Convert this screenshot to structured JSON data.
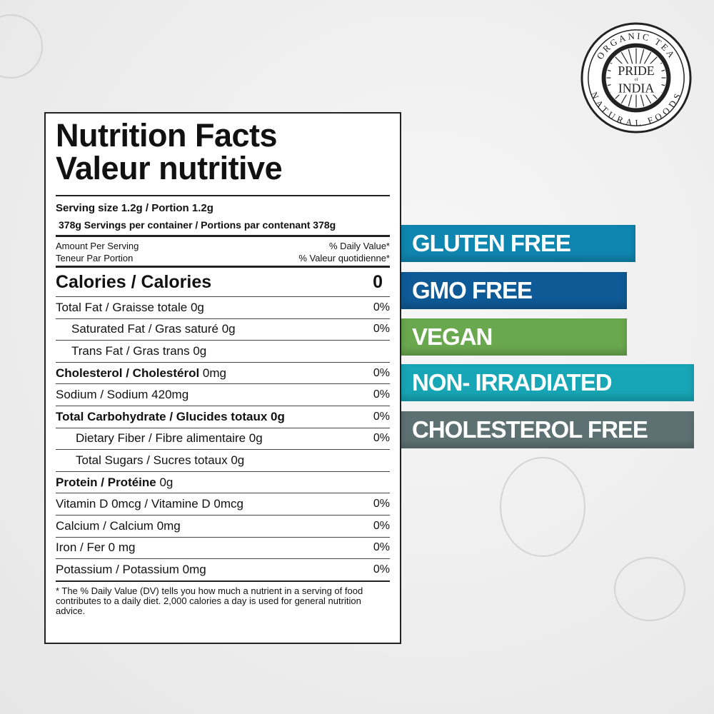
{
  "label": {
    "title_en": "Nutrition Facts",
    "title_fr": "Valeur nutritive",
    "serving_size": "Serving size 1.2g / Portion 1.2g",
    "servings_per": "378g Servings per container / Portions par contenant 378g",
    "amount_en": "Amount Per Serving",
    "amount_fr": "Teneur Par Portion",
    "dv_en": "% Daily Value*",
    "dv_fr": "% Valeur quotidienne*",
    "calories_label": "Calories / Calories",
    "calories_value": "0",
    "rows": [
      {
        "bold": "",
        "text": "Total Fat / Graisse totale 0g",
        "dv": "0%"
      },
      {
        "bold": "",
        "text": "Saturated Fat / Gras saturé 0g",
        "dv": "0%"
      },
      {
        "bold": "",
        "text": "Trans Fat / Gras trans 0g",
        "dv": ""
      },
      {
        "bold": "Cholesterol / Cholestérol",
        "text": " 0mg",
        "dv": "0%"
      },
      {
        "bold": "",
        "text": "Sodium / Sodium 420mg",
        "dv": "0%"
      },
      {
        "bold": "Total Carbohydrate / Glucides totaux 0g",
        "text": "",
        "dv": "0%"
      },
      {
        "bold": "",
        "text": "Dietary Fiber / Fibre alimentaire 0g",
        "dv": "0%"
      },
      {
        "bold": "",
        "text": "Total Sugars / Sucres totaux 0g",
        "dv": ""
      },
      {
        "bold": "Protein / Protéine",
        "text": " 0g",
        "dv": ""
      },
      {
        "bold": "",
        "text": "Vitamin D 0mcg / Vitamine D 0mcg",
        "dv": "0%"
      },
      {
        "bold": "",
        "text": "Calcium / Calcium 0mg",
        "dv": "0%"
      },
      {
        "bold": "",
        "text": "Iron / Fer 0 mg",
        "dv": "0%"
      },
      {
        "bold": "",
        "text": "Potassium / Potassium 0mg",
        "dv": "0%"
      }
    ],
    "footnote": "* The % Daily Value (DV) tells you how much a nutrient in a serving of food contributes to a daily diet. 2,000 calories a day is used for general nutrition advice."
  },
  "badges": [
    {
      "text": "GLUTEN FREE",
      "color": "#0f86b0"
    },
    {
      "text": "GMO FREE",
      "color": "#0e5a96"
    },
    {
      "text": "VEGAN",
      "color": "#6aa84f"
    },
    {
      "text": "NON- IRRADIATED",
      "color": "#17a6b6"
    },
    {
      "text": "CHOLESTEROL FREE",
      "color": "#5e7172"
    }
  ],
  "logo": {
    "top": "ORGANIC TEA",
    "bottom": "NATURAL FOODS",
    "center1": "PRIDE",
    "of": "of",
    "center2": "INDIA"
  }
}
